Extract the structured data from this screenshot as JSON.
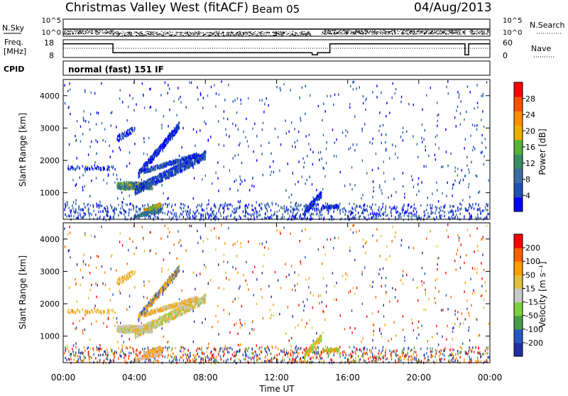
{
  "header": {
    "title": "Christmas Valley West (fitACF)",
    "beam": "Beam 05",
    "date": "04/Aug/2013"
  },
  "top_panels": {
    "nsky": {
      "label": "N.Sky",
      "ticks": [
        "10^5",
        "10^0"
      ],
      "right_ticks": [
        "10^5",
        "10^0"
      ],
      "right_label": "N.Search"
    },
    "freq": {
      "label_line1": "Freq.",
      "label_line2": "[MHz]",
      "ticks": [
        "18",
        "8"
      ],
      "right_ticks": [
        "60",
        "0"
      ],
      "right_label": "Nave"
    },
    "cpid": {
      "label": "CPID",
      "text": "normal (fast) 151 IF"
    }
  },
  "colors": {
    "power": [
      "#0000ff",
      "#2050b0",
      "#3a6ea0",
      "#3c8c64",
      "#57b23a",
      "#e8b000",
      "#ff8c00",
      "#ff5000",
      "#ff0000"
    ],
    "velocity": [
      "#2030a0",
      "#2858c0",
      "#4a9c48",
      "#7cd040",
      "#c8c8c8",
      "#e0c040",
      "#ff9c00",
      "#ff6000",
      "#ff0000"
    ]
  },
  "chart_data": [
    {
      "type": "heatmap",
      "name": "power-panel",
      "ylabel": "Slant Range [km]",
      "xlabel": "",
      "ylim": [
        180,
        4500
      ],
      "xlim_hours": [
        0,
        24
      ],
      "yticks": [
        "4000",
        "3000",
        "2000",
        "1000"
      ],
      "ytick_values": [
        4000,
        3000,
        2000,
        1000
      ],
      "colorbar": {
        "label": "Power [dB]",
        "ticks": [
          "28",
          "24",
          "20",
          "16",
          "12",
          "8",
          "4"
        ],
        "range": [
          0,
          32
        ]
      }
    },
    {
      "type": "heatmap",
      "name": "velocity-panel",
      "ylabel": "Slant Range [km]",
      "xlabel": "Time UT",
      "ylim": [
        180,
        4500
      ],
      "xlim_hours": [
        0,
        24
      ],
      "yticks": [
        "4000",
        "3000",
        "2000",
        "1000"
      ],
      "ytick_values": [
        4000,
        3000,
        2000,
        1000
      ],
      "xticks": [
        "00:00",
        "04:00",
        "08:00",
        "12:00",
        "16:00",
        "20:00",
        "00:00"
      ],
      "xtick_values": [
        0,
        4,
        8,
        12,
        16,
        20,
        24
      ],
      "colorbar": {
        "label": "Velocity [m s⁻¹]",
        "ticks": [
          "200",
          "100",
          "50",
          "15",
          "-15",
          "-50",
          "-100",
          "-200"
        ]
      }
    }
  ],
  "freq_series": {
    "x_hours": [
      0,
      2.8,
      2.8,
      14.0,
      14.0,
      14.3,
      14.3,
      15.0,
      15.0,
      22.6,
      22.6,
      22.8,
      22.8,
      24
    ],
    "mhz": [
      16,
      16,
      9.5,
      9.5,
      8,
      8,
      9.5,
      9.5,
      16,
      16,
      8,
      8,
      16,
      16
    ]
  }
}
